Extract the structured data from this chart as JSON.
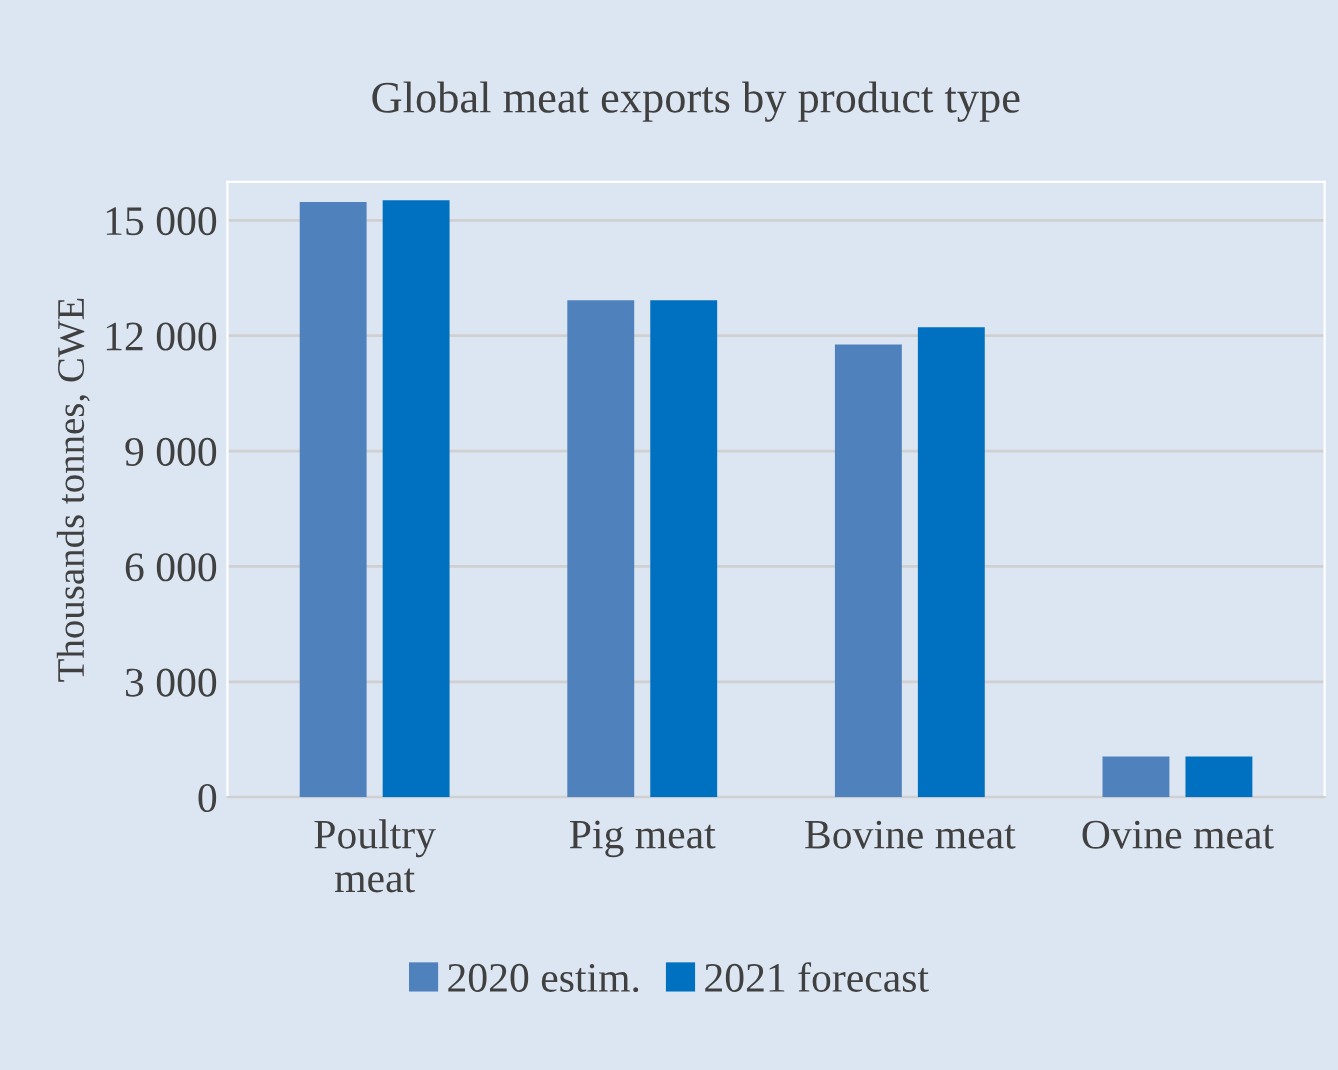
{
  "chart_data": {
    "type": "bar",
    "title": "Global meat exports by product type",
    "ylabel": "Thousands tonnes, CWE",
    "categories": [
      "Poultry\nmeat",
      "Pig meat",
      "Bovine meat",
      "Ovine meat"
    ],
    "series": [
      {
        "name": "2020 estim.",
        "color": "#4f81bd",
        "values": [
          15480,
          12920,
          11770,
          1060
        ]
      },
      {
        "name": "2021 forecast",
        "color": "#0070c0",
        "values": [
          15520,
          12920,
          12220,
          1060
        ]
      }
    ],
    "ylim": [
      0,
      16000
    ],
    "yticks": [
      0,
      {
        "value": 3000,
        "label": "3 000"
      },
      {
        "value": 6000,
        "label": "6 000"
      },
      {
        "value": 9000,
        "label": "9 000"
      },
      {
        "value": 12000,
        "label": "12 000"
      },
      {
        "value": 15000,
        "label": "15 000"
      }
    ],
    "grid": "y",
    "legend": "bottom"
  }
}
